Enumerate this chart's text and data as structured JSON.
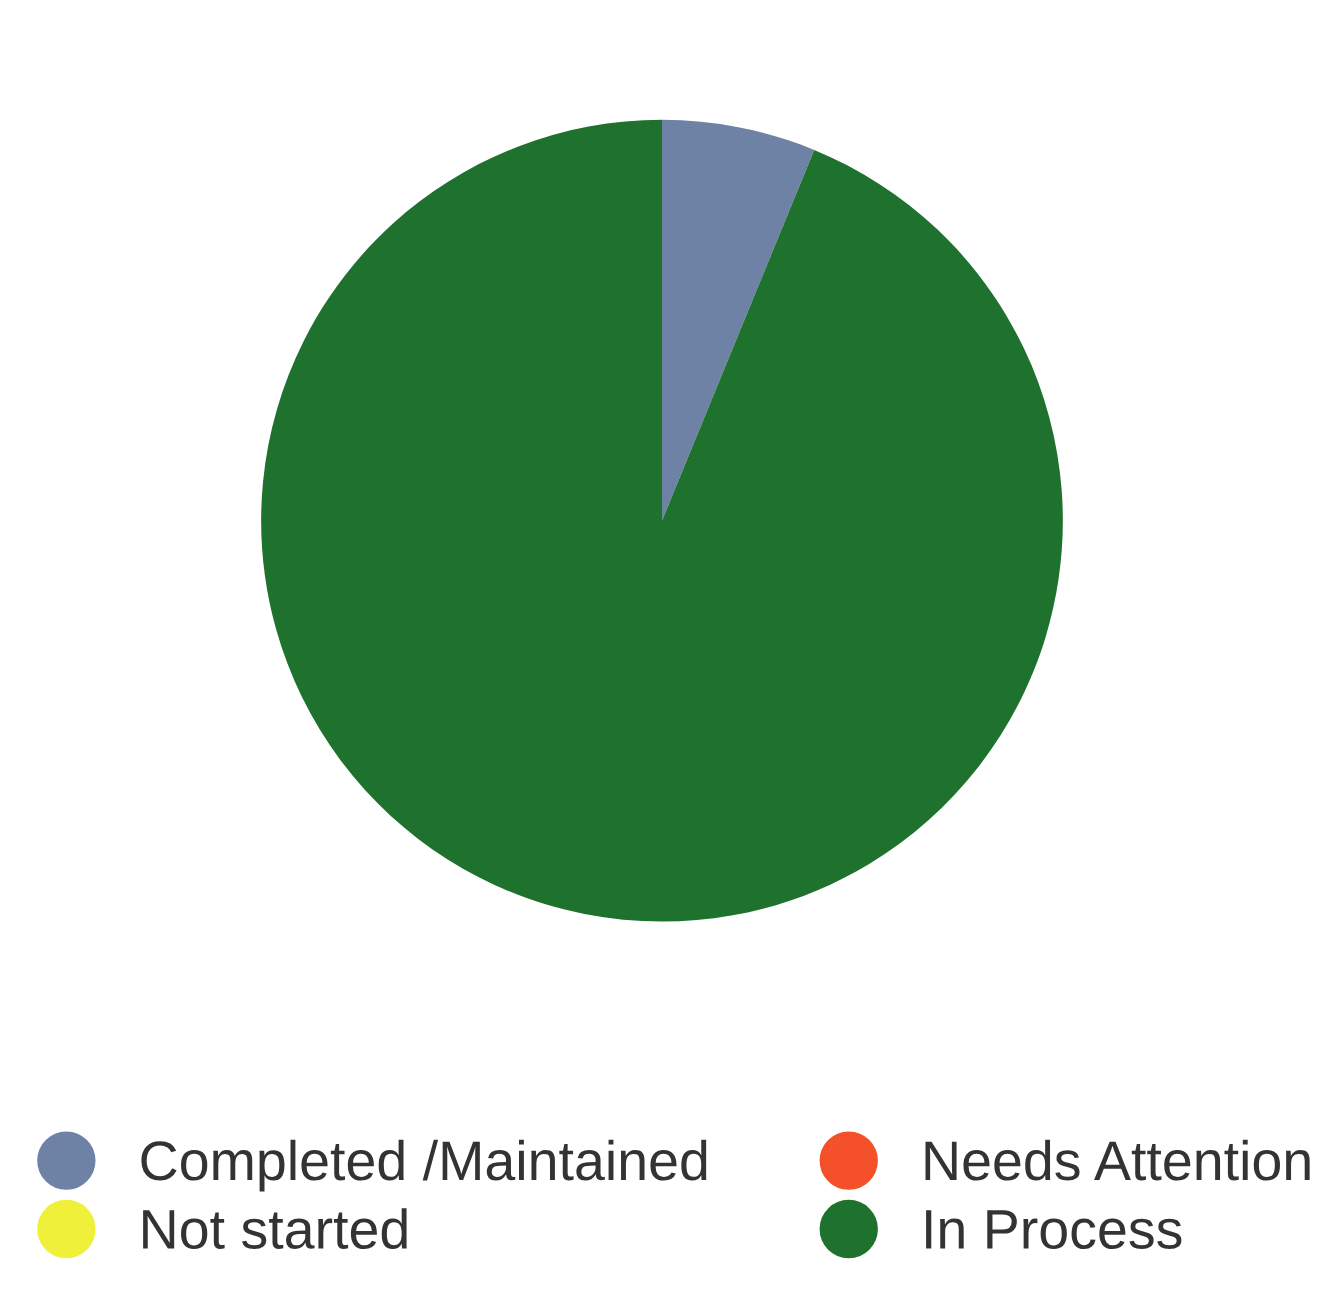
{
  "chart_data": {
    "type": "pie",
    "categories": [
      "Completed /Maintained",
      "Needs Attention",
      "Not started",
      "In Process"
    ],
    "values": [
      6.2,
      0,
      0,
      93.8
    ],
    "colors": [
      "#6e82a6",
      "#f4502a",
      "#eef03a",
      "#1f722e"
    ],
    "legend": "bottom"
  }
}
